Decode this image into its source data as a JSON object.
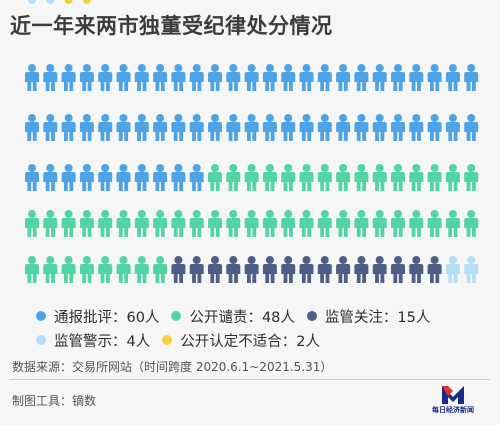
{
  "title": "近一年来两市独董受纪律处分情况",
  "chart_data": {
    "type": "pictogram",
    "unit": "人",
    "series": [
      {
        "name": "通报批评",
        "value": 60,
        "color": "#4da3e6"
      },
      {
        "name": "公开谴责",
        "value": 48,
        "color": "#52d4a3"
      },
      {
        "name": "监管关注",
        "value": 15,
        "color": "#4f5e86"
      },
      {
        "name": "监管警示",
        "value": 4,
        "color": "#b5def7"
      },
      {
        "name": "公开认定不适合",
        "value": 2,
        "color": "#f6d03c"
      }
    ]
  },
  "legend": [
    {
      "label": "通报批评",
      "value": "60人"
    },
    {
      "label": "公开谴责",
      "value": "48人"
    },
    {
      "label": "监管关注",
      "value": "15人"
    },
    {
      "label": "监管警示",
      "value": "4人"
    },
    {
      "label": "公开认定不适合",
      "value": "2人"
    }
  ],
  "colon": "：",
  "source": "数据来源：交易所网站（时间跨度 2020.6.1~2021.5.31）",
  "tool": "制图工具：镝数",
  "logo": {
    "text": "每日经济新闻",
    "mark": "M"
  }
}
